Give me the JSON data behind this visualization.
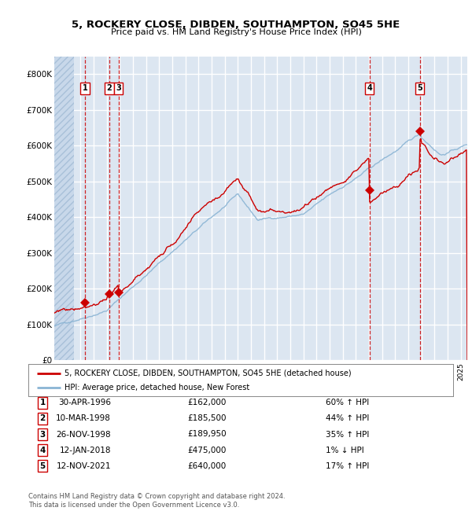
{
  "title1": "5, ROCKERY CLOSE, DIBDEN, SOUTHAMPTON, SO45 5HE",
  "title2": "Price paid vs. HM Land Registry's House Price Index (HPI)",
  "xlim": [
    1994.0,
    2025.5
  ],
  "ylim": [
    0,
    850000
  ],
  "yticks": [
    0,
    100000,
    200000,
    300000,
    400000,
    500000,
    600000,
    700000,
    800000
  ],
  "ytick_labels": [
    "£0",
    "£100K",
    "£200K",
    "£300K",
    "£400K",
    "£500K",
    "£600K",
    "£700K",
    "£800K"
  ],
  "background_color": "#dce6f1",
  "hatch_region_end": 1995.5,
  "grid_color": "#ffffff",
  "red_line_color": "#cc0000",
  "blue_line_color": "#8ab4d4",
  "dashed_line_color": "#cc0000",
  "sale_marker_color": "#cc0000",
  "purchases": [
    {
      "num": 1,
      "year": 1996.33,
      "price": 162000
    },
    {
      "num": 2,
      "year": 1998.19,
      "price": 185500
    },
    {
      "num": 3,
      "year": 1998.9,
      "price": 189950
    },
    {
      "num": 4,
      "year": 2018.04,
      "price": 475000
    },
    {
      "num": 5,
      "year": 2021.87,
      "price": 640000
    }
  ],
  "legend_line1": "5, ROCKERY CLOSE, DIBDEN, SOUTHAMPTON, SO45 5HE (detached house)",
  "legend_line2": "HPI: Average price, detached house, New Forest",
  "footnote": "Contains HM Land Registry data © Crown copyright and database right 2024.\nThis data is licensed under the Open Government Licence v3.0.",
  "table_rows": [
    [
      "1",
      "30-APR-1996",
      "£162,000",
      "60% ↑ HPI"
    ],
    [
      "2",
      "10-MAR-1998",
      "£185,500",
      "44% ↑ HPI"
    ],
    [
      "3",
      "26-NOV-1998",
      "£189,950",
      "35% ↑ HPI"
    ],
    [
      "4",
      "12-JAN-2018",
      "£475,000",
      "1% ↓ HPI"
    ],
    [
      "5",
      "12-NOV-2021",
      "£640,000",
      "17% ↑ HPI"
    ]
  ]
}
